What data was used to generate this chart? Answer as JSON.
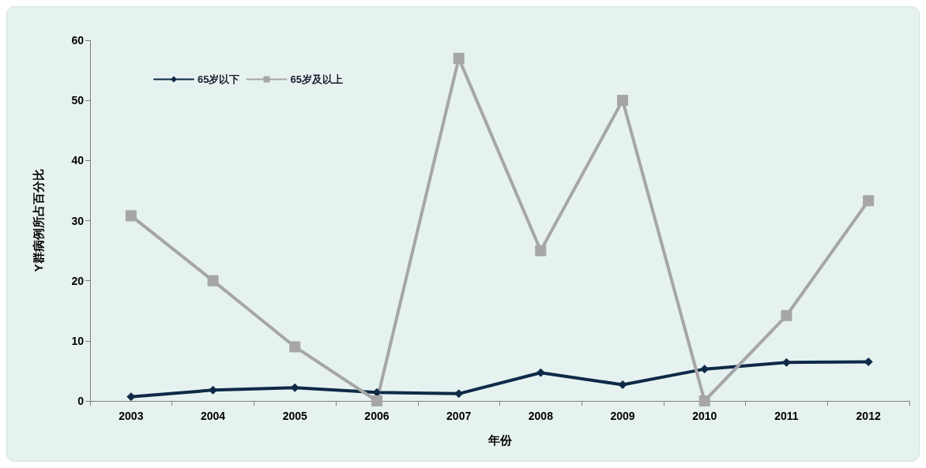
{
  "chart_data": {
    "type": "line",
    "xlabel": "年份",
    "ylabel": "Y群病例所占百分比",
    "categories": [
      "2003",
      "2004",
      "2005",
      "2006",
      "2007",
      "2008",
      "2009",
      "2010",
      "2011",
      "2012"
    ],
    "series": [
      {
        "name": "65岁以下",
        "color": "#0e2a47",
        "marker": "diamond",
        "values": [
          0.7,
          1.8,
          2.2,
          1.4,
          1.2,
          4.7,
          2.7,
          5.3,
          6.4,
          6.5
        ]
      },
      {
        "name": "65岁及以上",
        "color": "#a6a6a6",
        "marker": "square",
        "values": [
          30.8,
          20,
          9,
          0,
          57,
          25,
          50,
          0,
          14.2,
          33.3
        ]
      }
    ],
    "ylim": [
      0,
      60
    ],
    "yticks": [
      0,
      10,
      20,
      30,
      40,
      50,
      60
    ],
    "grid": false,
    "legend": "top left",
    "line_style": "solid"
  }
}
